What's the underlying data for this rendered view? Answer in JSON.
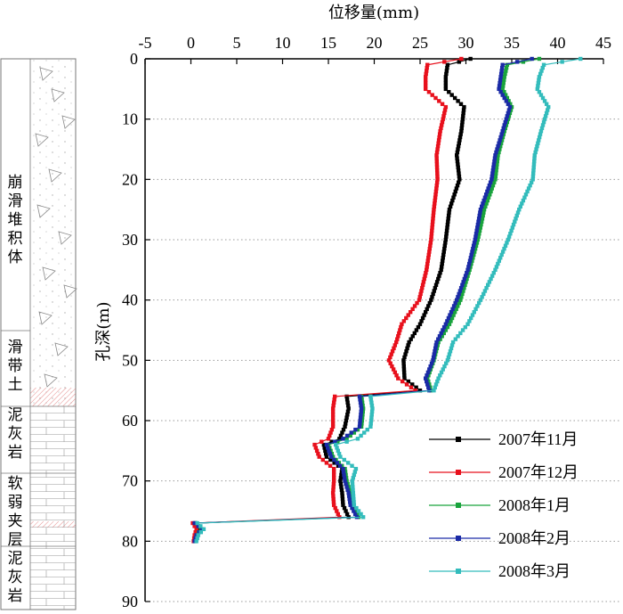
{
  "chart_data": {
    "type": "line",
    "title": "",
    "xlabel": "位移量(mm)",
    "ylabel": "孔深(m)",
    "xlim": [
      -5,
      45
    ],
    "ylim": [
      0,
      90
    ],
    "y_inverted": true,
    "x_axis_position": "top",
    "xticks": [
      "-5",
      "0",
      "5",
      "10",
      "15",
      "20",
      "25",
      "30",
      "35",
      "40",
      "45"
    ],
    "yticks": [
      "0",
      "10",
      "20",
      "30",
      "40",
      "50",
      "60",
      "70",
      "80",
      "90"
    ],
    "grid": "horizontal dotted",
    "legend_position": "bottom-right",
    "depth": [
      0,
      1,
      3,
      5,
      8,
      12,
      16,
      20,
      25,
      30,
      35,
      40,
      44,
      47,
      50,
      53,
      55,
      56,
      58,
      61,
      63,
      64,
      66,
      68,
      70,
      72,
      74,
      76,
      77,
      78,
      79,
      80
    ],
    "series": [
      {
        "name": "2007年11月",
        "color": "#000000",
        "values": [
          30.5,
          28,
          27.8,
          27.8,
          29.8,
          29.5,
          29.0,
          29.3,
          28.2,
          27.8,
          27.3,
          26.2,
          25.0,
          23.8,
          23.2,
          23.3,
          25.0,
          17.0,
          17.2,
          16.8,
          16.2,
          14.5,
          14.8,
          16.5,
          16.3,
          16.5,
          16.6,
          17.2,
          0.5,
          1.0,
          0.5,
          0.5
        ]
      },
      {
        "name": "2007年12月",
        "color": "#e8101c",
        "values": [
          29.5,
          25.8,
          25.6,
          25.6,
          27.8,
          27.2,
          26.8,
          26.9,
          26.5,
          26.2,
          25.7,
          24.9,
          23.0,
          22.4,
          21.6,
          22.6,
          24.5,
          15.7,
          15.5,
          15.5,
          15.0,
          13.5,
          14.0,
          15.6,
          15.6,
          15.5,
          15.6,
          16.2,
          0.2,
          0.6,
          0.4,
          0.3
        ]
      },
      {
        "name": "2008年1月",
        "color": "#19a33c",
        "values": [
          38.0,
          34.5,
          34.2,
          34.0,
          35.0,
          34.2,
          33.5,
          33.2,
          32.0,
          31.3,
          30.4,
          29.4,
          28.2,
          27.0,
          26.5,
          25.8,
          26.2,
          18.6,
          18.8,
          18.6,
          17.0,
          15.0,
          15.5,
          16.8,
          17.0,
          17.4,
          17.6,
          18.3,
          0.5,
          1.1,
          0.6,
          0.5
        ]
      },
      {
        "name": "2008年2月",
        "color": "#1a2aa6",
        "values": [
          37.2,
          34.0,
          33.8,
          33.6,
          34.8,
          34.0,
          33.2,
          32.8,
          31.6,
          31.0,
          30.2,
          29.0,
          27.8,
          26.8,
          26.4,
          25.6,
          26.0,
          18.4,
          18.6,
          18.4,
          16.6,
          14.8,
          15.3,
          16.6,
          16.8,
          17.2,
          17.4,
          18.1,
          0.4,
          1.2,
          0.6,
          0.4
        ]
      },
      {
        "name": "2008年3月",
        "color": "#33bcbc",
        "values": [
          42.5,
          38.5,
          38.0,
          37.8,
          39.0,
          38.2,
          37.5,
          37.3,
          35.8,
          34.6,
          33.2,
          31.6,
          30.2,
          28.6,
          28.0,
          27.0,
          26.5,
          19.6,
          19.8,
          19.6,
          18.2,
          15.8,
          16.3,
          18.0,
          17.6,
          17.7,
          17.8,
          18.8,
          0.7,
          1.4,
          0.8,
          0.6
        ]
      }
    ],
    "strata": [
      {
        "label": "崩滑堆积体",
        "from": 0,
        "to": 44.5
      },
      {
        "label": "滑带土",
        "from": 44.5,
        "to": 57
      },
      {
        "label": "泥灰岩",
        "from": 57,
        "to": 68
      },
      {
        "label": "软弱夹层",
        "from": 68,
        "to": 80
      },
      {
        "label": "泥灰岩",
        "from": 80,
        "to": 90
      }
    ],
    "strata_colors": {
      "hatch": "#e07070",
      "outline": "#666666"
    }
  }
}
